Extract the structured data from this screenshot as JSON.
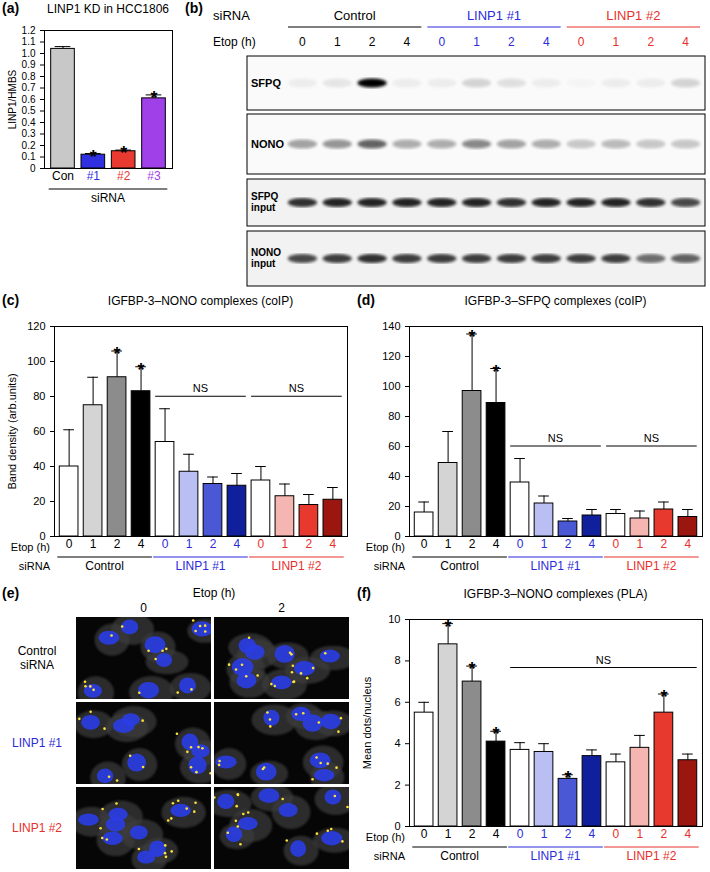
{
  "chart_data": [
    {
      "type": "bar",
      "panel": "(a)",
      "title": "LINP1 KD in HCC1806",
      "ylabel": "LINP1/HMBS",
      "xlabel": "siRNA",
      "categories": [
        "Con",
        "#1",
        "#2",
        "#3"
      ],
      "colors": [
        "#c8c8c8",
        "#3030e0",
        "#e83a30",
        "#a040e8"
      ],
      "values": [
        1.04,
        0.12,
        0.15,
        0.61
      ],
      "errors": [
        0.02,
        0.01,
        0.01,
        0.03
      ],
      "significance": [
        null,
        "*",
        "*",
        "*"
      ],
      "ylim": [
        0,
        1.2
      ],
      "yticks": [
        0,
        0.1,
        0.2,
        0.3,
        0.4,
        0.5,
        0.6,
        0.7,
        0.8,
        0.9,
        {
          "value": 1,
          "label": "1.0"
        },
        1.1,
        1.2
      ]
    },
    {
      "type": "bar",
      "panel": "(c)",
      "title": "IGFBP-3–NONO complexes (coIP)",
      "ylabel": "Band density (arb.units)",
      "xlabel": "Etop (h)",
      "group_title": "siRNA",
      "groups": [
        {
          "name": "Control",
          "color": "#000000",
          "categories": [
            "0",
            "1",
            "2",
            "4"
          ],
          "colors": [
            "#ffffff",
            "#d4d4d4",
            "#8c8c8c",
            "#000000"
          ],
          "values": [
            40,
            75,
            91,
            83
          ],
          "errors": [
            21,
            16,
            15,
            14
          ],
          "significance": [
            null,
            null,
            "*",
            "*"
          ]
        },
        {
          "name": "LINP1 #1",
          "color": "#2b2bd9",
          "categories": [
            "0",
            "1",
            "2",
            "4"
          ],
          "colors": [
            "#ffffff",
            "#b9bff2",
            "#4b58d6",
            "#10209c"
          ],
          "values": [
            54,
            37,
            30,
            29
          ],
          "errors": [
            19,
            10,
            4,
            7
          ],
          "significance": [
            null,
            null,
            null,
            null
          ]
        },
        {
          "name": "LINP1 #2",
          "color": "#e8302a",
          "categories": [
            "0",
            "1",
            "2",
            "4"
          ],
          "colors": [
            "#ffffff",
            "#f5b5b0",
            "#e8392f",
            "#9c1610"
          ],
          "values": [
            32,
            23,
            18,
            21
          ],
          "errors": [
            8,
            7,
            6,
            7
          ],
          "significance": [
            null,
            null,
            null,
            null
          ]
        }
      ],
      "brackets": [
        {
          "groups": [
            "LINP1 #1"
          ],
          "label": "NS"
        },
        {
          "groups": [
            "LINP1 #2"
          ],
          "label": "NS"
        }
      ],
      "ylim": [
        0,
        120
      ],
      "yticks": [
        0,
        20,
        40,
        60,
        80,
        100,
        120
      ]
    },
    {
      "type": "bar",
      "panel": "(d)",
      "title": "IGFBP-3–SFPQ complexes (coIP)",
      "xlabel": "Etop (h)",
      "group_title": "siRNA",
      "groups": [
        {
          "name": "Control",
          "color": "#000000",
          "categories": [
            "0",
            "1",
            "2",
            "4"
          ],
          "colors": [
            "#ffffff",
            "#d4d4d4",
            "#8c8c8c",
            "#000000"
          ],
          "values": [
            16,
            49,
            97,
            89
          ],
          "errors": [
            7,
            21,
            38,
            23
          ],
          "significance": [
            null,
            null,
            "*",
            "*"
          ]
        },
        {
          "name": "LINP1 #1",
          "color": "#2b2bd9",
          "categories": [
            "0",
            "1",
            "2",
            "4"
          ],
          "colors": [
            "#ffffff",
            "#b9bff2",
            "#4b58d6",
            "#10209c"
          ],
          "values": [
            36,
            22,
            10,
            14
          ],
          "errors": [
            16,
            5,
            2,
            4
          ],
          "significance": [
            null,
            null,
            null,
            null
          ]
        },
        {
          "name": "LINP1 #2",
          "color": "#e8302a",
          "categories": [
            "0",
            "1",
            "2",
            "4"
          ],
          "colors": [
            "#ffffff",
            "#f5b5b0",
            "#e8392f",
            "#9c1610"
          ],
          "values": [
            15,
            12,
            18,
            13
          ],
          "errors": [
            3,
            5,
            5,
            5
          ],
          "significance": [
            null,
            null,
            null,
            null
          ]
        }
      ],
      "brackets": [
        {
          "groups": [
            "LINP1 #1"
          ],
          "label": "NS"
        },
        {
          "groups": [
            "LINP1 #2"
          ],
          "label": "NS"
        }
      ],
      "ylim": [
        0,
        140
      ],
      "yticks": [
        0,
        20,
        40,
        60,
        80,
        100,
        120,
        140
      ]
    },
    {
      "type": "bar",
      "panel": "(f)",
      "title": "IGFBP-3–NONO complexes (PLA)",
      "ylabel": "Mean dots/nucleus",
      "xlabel": "Etop (h)",
      "group_title": "siRNA",
      "groups": [
        {
          "name": "Control",
          "color": "#000000",
          "categories": [
            "0",
            "1",
            "2",
            "4"
          ],
          "colors": [
            "#ffffff",
            "#d4d4d4",
            "#8c8c8c",
            "#000000"
          ],
          "values": [
            5.5,
            8.8,
            7.0,
            4.1
          ],
          "errors": [
            0.5,
            1.0,
            0.75,
            0.5
          ],
          "significance": [
            null,
            "*",
            "*",
            "*"
          ]
        },
        {
          "name": "LINP1 #1",
          "color": "#2b2bd9",
          "categories": [
            "0",
            "1",
            "2",
            "4"
          ],
          "colors": [
            "#ffffff",
            "#b9bff2",
            "#4b58d6",
            "#10209c"
          ],
          "values": [
            3.7,
            3.6,
            2.3,
            3.4
          ],
          "errors": [
            0.35,
            0.4,
            0.2,
            0.3
          ],
          "significance": [
            null,
            null,
            "*",
            null
          ]
        },
        {
          "name": "LINP1 #2",
          "color": "#e8302a",
          "categories": [
            "0",
            "1",
            "2",
            "4"
          ],
          "colors": [
            "#ffffff",
            "#f5b5b0",
            "#e8392f",
            "#9c1610"
          ],
          "values": [
            3.1,
            3.8,
            5.5,
            3.2
          ],
          "errors": [
            0.4,
            0.6,
            0.9,
            0.3
          ],
          "significance": [
            null,
            null,
            "*",
            null
          ]
        }
      ],
      "brackets": [
        {
          "groups": [
            "LINP1 #1",
            "LINP1 #2"
          ],
          "label": "NS"
        }
      ],
      "ylim": [
        0,
        10
      ],
      "yticks": [
        0,
        2,
        4,
        6,
        8,
        10
      ]
    }
  ],
  "blot": {
    "panel": "(b)",
    "group_title": "siRNA",
    "lane_title": "Etop (h)",
    "groups": [
      {
        "name": "Control",
        "color": "#000000",
        "lanes": [
          "0",
          "1",
          "2",
          "4"
        ]
      },
      {
        "name": "LINP1 #1",
        "color": "#2b2bd9",
        "lanes": [
          "0",
          "1",
          "2",
          "4"
        ]
      },
      {
        "name": "LINP1 #2",
        "color": "#e8302a",
        "lanes": [
          "0",
          "1",
          "2",
          "4"
        ]
      }
    ],
    "rows": [
      {
        "label_lines": [
          "SFPQ"
        ],
        "band_intensity": [
          0.05,
          0.08,
          1.0,
          0.05,
          0.05,
          0.15,
          0.1,
          0.05,
          0.02,
          0.05,
          0.05,
          0.15
        ]
      },
      {
        "label_lines": [
          "NONO"
        ],
        "band_intensity": [
          0.35,
          0.4,
          0.6,
          0.3,
          0.3,
          0.45,
          0.35,
          0.3,
          0.2,
          0.25,
          0.2,
          0.2
        ]
      },
      {
        "label_lines": [
          "SFPQ",
          "input"
        ],
        "band_intensity": [
          0.8,
          0.85,
          0.85,
          0.85,
          0.85,
          0.85,
          0.8,
          0.85,
          0.85,
          0.85,
          0.8,
          0.7
        ]
      },
      {
        "label_lines": [
          "NONO",
          "input"
        ],
        "band_intensity": [
          0.7,
          0.75,
          0.8,
          0.75,
          0.75,
          0.75,
          0.75,
          0.75,
          0.75,
          0.75,
          0.55,
          0.6
        ]
      }
    ]
  },
  "microscopy": {
    "panel": "(e)",
    "column_title": "Etop (h)",
    "columns": [
      "0",
      "2"
    ],
    "rows": [
      {
        "label_lines": [
          "Control",
          "siRNA"
        ],
        "color": "#000000"
      },
      {
        "label_lines": [
          "LINP1 #1"
        ],
        "color": "#2b2bd9"
      },
      {
        "label_lines": [
          "LINP1 #2"
        ],
        "color": "#e8302a"
      }
    ]
  }
}
